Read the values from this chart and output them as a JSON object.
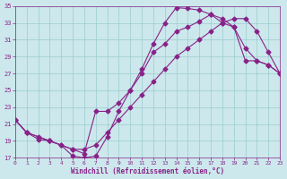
{
  "xlabel": "Windchill (Refroidissement éolien,°C)",
  "bg_color": "#cce8ec",
  "line_color": "#882288",
  "grid_color": "#99cccc",
  "xmin": 0,
  "xmax": 23,
  "ymin": 17,
  "ymax": 35,
  "line1_x": [
    0,
    1,
    2,
    3,
    4,
    5,
    6,
    7,
    8,
    9,
    10,
    11,
    12,
    13,
    14,
    15,
    16,
    17,
    18,
    19,
    20,
    21,
    22,
    23
  ],
  "line1_y": [
    21.5,
    20.0,
    19.2,
    19.0,
    18.5,
    17.2,
    17.0,
    17.2,
    19.5,
    22.5,
    25.0,
    27.5,
    30.5,
    33.0,
    34.8,
    34.7,
    34.5,
    34.0,
    33.5,
    32.5,
    30.0,
    28.5,
    28.0,
    27.0
  ],
  "line2_x": [
    0,
    1,
    3,
    5,
    6,
    7,
    8,
    9,
    10,
    11,
    12,
    13,
    14,
    15,
    16,
    17,
    18,
    19,
    20,
    21,
    22,
    23
  ],
  "line2_y": [
    21.5,
    20.0,
    19.0,
    18.0,
    17.5,
    22.5,
    22.5,
    23.5,
    25.0,
    27.0,
    29.5,
    30.5,
    32.0,
    32.5,
    33.2,
    34.0,
    33.0,
    32.5,
    28.5,
    28.5,
    28.0,
    27.0
  ],
  "line3_x": [
    0,
    1,
    2,
    3,
    4,
    5,
    6,
    7,
    8,
    9,
    10,
    11,
    12,
    13,
    14,
    15,
    16,
    17,
    18,
    19,
    20,
    21,
    22,
    23
  ],
  "line3_y": [
    21.5,
    20.0,
    19.5,
    19.0,
    18.5,
    18.0,
    18.0,
    18.5,
    20.0,
    21.5,
    23.0,
    24.5,
    26.0,
    27.5,
    29.0,
    30.0,
    31.0,
    32.0,
    33.0,
    33.5,
    33.5,
    32.0,
    29.5,
    27.0
  ]
}
